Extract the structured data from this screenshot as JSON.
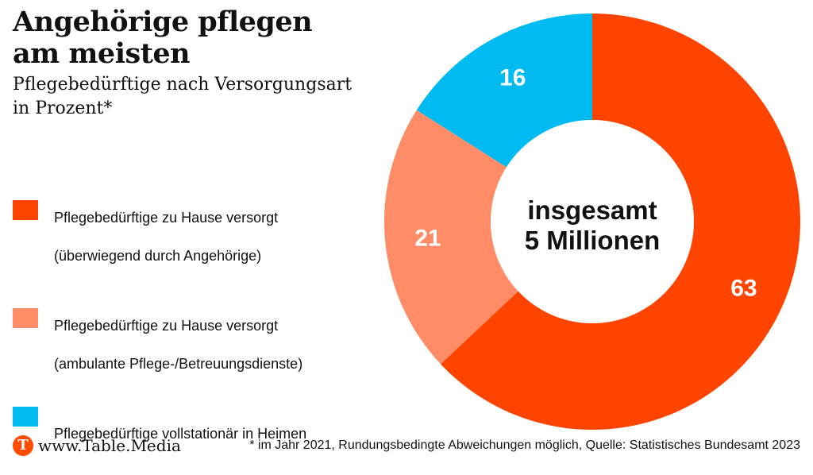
{
  "header": {
    "title_line1": "Angehörige pflegen",
    "title_line2": "am meisten",
    "subtitle_line1": "Pflegebedürftige nach Versorgungsart",
    "subtitle_line2": "in Prozent*"
  },
  "colors": {
    "home_relatives": "#ff4400",
    "home_ambulant": "#ff8c66",
    "stationary": "#00baf2",
    "brand": "#ff4a00"
  },
  "chart_data": {
    "type": "pie",
    "variant": "donut",
    "title": "Pflegebedürftige nach Versorgungsart",
    "unit": "Prozent",
    "center_label_line1": "insgesamt",
    "center_label_line2": "5 Millionen",
    "slices": [
      {
        "key": "home_relatives",
        "label_line1": "Pflegebedürftige zu Hause versorgt",
        "label_line2": "(überwiegend durch Angehörige)",
        "value": 63,
        "value_label": "63",
        "color": "#ff4400"
      },
      {
        "key": "home_ambulant",
        "label_line1": "Pflegebedürftige zu Hause versorgt",
        "label_line2": "(ambulante Pflege-/Betreuungsdienste)",
        "value": 21,
        "value_label": "21",
        "color": "#ff8c66"
      },
      {
        "key": "stationary",
        "label_line1": "Pflegebedürftige vollstationär in Heimen",
        "label_line2": "",
        "value": 16,
        "value_label": "16",
        "color": "#00baf2"
      }
    ],
    "start_angle_deg": 0,
    "direction": "clockwise"
  },
  "footer": {
    "brand_logo_letter": "T",
    "brand_name": "www.Table.Media",
    "source_note": "* im Jahr 2021, Rundungsbedingte Abweichungen möglich, Quelle: Statistisches Bundesamt 2023"
  }
}
